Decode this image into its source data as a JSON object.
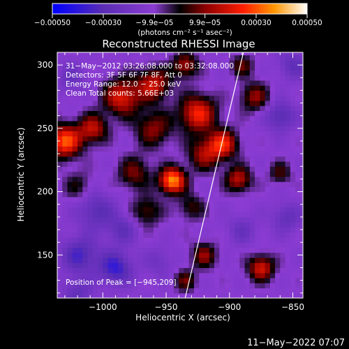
{
  "colorbar": {
    "ticks": [
      {
        "value": -0.0005,
        "label": "−0.00050"
      },
      {
        "value": -0.0003,
        "label": "−0.00030"
      },
      {
        "value": -9.9e-05,
        "label": "−9.9e−05"
      },
      {
        "value": 9.9e-05,
        "label": "9.9e−05"
      },
      {
        "value": 0.0003,
        "label": "0.00030"
      },
      {
        "value": 0.0005,
        "label": "0.00050"
      }
    ],
    "unit_label": "(photons cm⁻² s⁻¹ asec⁻²)"
  },
  "title": "Reconstructed RHESSI Image",
  "info_lines": [
    "31−May−2012 03:26:08.000 to 03:32:08.000",
    "Detectors: 3F 5F 6F 7F 8F, Att 0",
    "Energy Range: 12.0 − 25.0 keV",
    "Clean    Total counts: 5.66E+03"
  ],
  "peak_text": "Position of Peak = [−945,209]",
  "footer": "11−May−2022 07:07",
  "chart_data": {
    "type": "heatmap",
    "title": "Reconstructed RHESSI Image",
    "xlabel": "Heliocentric X (arcsec)",
    "ylabel": "Heliocentric Y (arcsec)",
    "xlim": [
      -1036,
      -842
    ],
    "ylim": [
      116,
      310
    ],
    "xticks": [
      {
        "value": -1000,
        "label": "−1000"
      },
      {
        "value": -950,
        "label": "−950"
      },
      {
        "value": -900,
        "label": "−900"
      },
      {
        "value": -850,
        "label": "−850"
      }
    ],
    "yticks": [
      {
        "value": 150,
        "label": "150"
      },
      {
        "value": 200,
        "label": "200"
      },
      {
        "value": 250,
        "label": "250"
      },
      {
        "value": 300,
        "label": "300"
      }
    ],
    "color_range": [
      -0.0005,
      0.0005
    ],
    "peak": [
      -945,
      209
    ],
    "limb_line": [
      [
        -935,
        116
      ],
      [
        -889,
        310
      ]
    ],
    "blobs": [
      {
        "x": -945,
        "y": 209,
        "amp": 0.0005,
        "s": 7
      },
      {
        "x": -1030,
        "y": 240,
        "amp": 0.00042,
        "s": 9
      },
      {
        "x": -1008,
        "y": 250,
        "amp": 0.00028,
        "s": 8
      },
      {
        "x": -985,
        "y": 275,
        "amp": 0.00033,
        "s": 10
      },
      {
        "x": -960,
        "y": 285,
        "amp": 0.0003,
        "s": 9
      },
      {
        "x": -925,
        "y": 262,
        "amp": 0.00036,
        "s": 10
      },
      {
        "x": -905,
        "y": 238,
        "amp": 0.00034,
        "s": 8
      },
      {
        "x": -893,
        "y": 210,
        "amp": 0.00028,
        "s": 7
      },
      {
        "x": -920,
        "y": 230,
        "amp": 0.00024,
        "s": 9
      },
      {
        "x": -960,
        "y": 250,
        "amp": 0.00022,
        "s": 10
      },
      {
        "x": -975,
        "y": 215,
        "amp": 0.0002,
        "s": 9
      },
      {
        "x": -880,
        "y": 275,
        "amp": 0.00022,
        "s": 8
      },
      {
        "x": -935,
        "y": 300,
        "amp": 0.00025,
        "s": 7
      },
      {
        "x": -890,
        "y": 300,
        "amp": 0.00018,
        "s": 6
      },
      {
        "x": -965,
        "y": 185,
        "amp": 0.00018,
        "s": 8
      },
      {
        "x": -930,
        "y": 188,
        "amp": 0.00016,
        "s": 7
      },
      {
        "x": -875,
        "y": 140,
        "amp": 0.00032,
        "s": 7
      },
      {
        "x": -920,
        "y": 150,
        "amp": 0.00022,
        "s": 7
      },
      {
        "x": -935,
        "y": 130,
        "amp": 0.00018,
        "s": 6
      },
      {
        "x": -860,
        "y": 215,
        "amp": 0.00016,
        "s": 6
      },
      {
        "x": -1020,
        "y": 205,
        "amp": 0.00012,
        "s": 8
      },
      {
        "x": -1018,
        "y": 150,
        "amp": -0.00022,
        "s": 10
      },
      {
        "x": -990,
        "y": 140,
        "amp": -0.00026,
        "s": 9
      },
      {
        "x": -1005,
        "y": 185,
        "amp": -0.00018,
        "s": 10
      },
      {
        "x": -985,
        "y": 170,
        "amp": -0.00015,
        "s": 8
      },
      {
        "x": -955,
        "y": 145,
        "amp": -0.0001,
        "s": 8
      },
      {
        "x": -860,
        "y": 260,
        "amp": -0.0002,
        "s": 8
      },
      {
        "x": -855,
        "y": 180,
        "amp": -0.00015,
        "s": 8
      },
      {
        "x": -890,
        "y": 170,
        "amp": -0.00012,
        "s": 8
      },
      {
        "x": -850,
        "y": 300,
        "amp": -0.00015,
        "s": 8
      },
      {
        "x": -1025,
        "y": 290,
        "amp": -0.00012,
        "s": 8
      },
      {
        "x": -1020,
        "y": 120,
        "amp": -0.00015,
        "s": 8
      }
    ]
  }
}
